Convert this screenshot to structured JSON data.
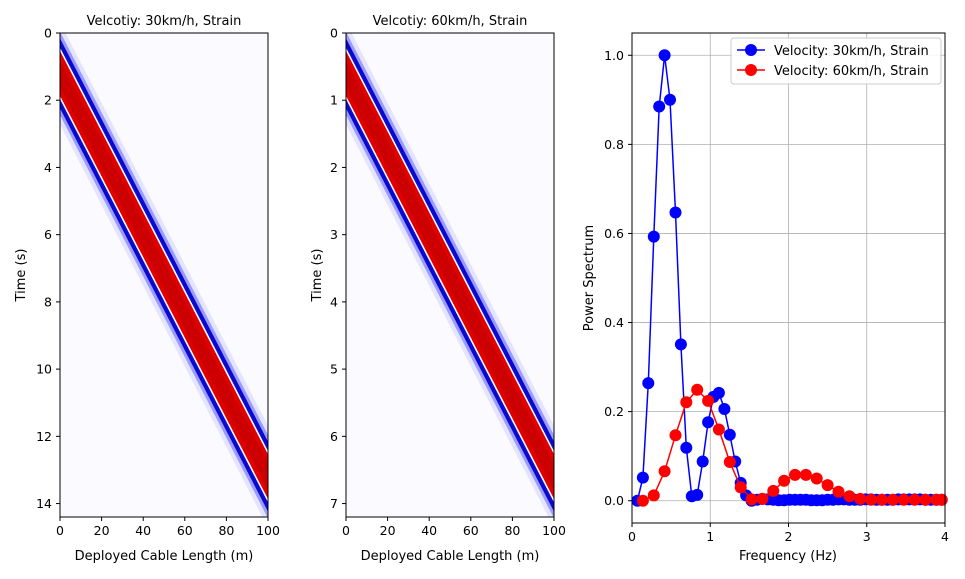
{
  "chart_data": [
    {
      "type": "heatmap",
      "title": "Velcotiy: 30km/h, Strain",
      "xlabel": "Deployed Cable Length (m)",
      "ylabel": "Time (s)",
      "xlim": [
        0,
        100
      ],
      "ylim": [
        14.4,
        0
      ],
      "xticks": [
        0,
        20,
        40,
        60,
        80,
        100
      ],
      "yticks": [
        0,
        2,
        4,
        6,
        8,
        10,
        12,
        14
      ],
      "speed_mps": 8.333,
      "band_center_t0": 1.2,
      "band_halfwidth_s": 0.8,
      "colormap": "seismic"
    },
    {
      "type": "heatmap",
      "title": "Velcotiy: 60km/h, Strain",
      "xlabel": "Deployed Cable Length (m)",
      "ylabel": "Time (s)",
      "xlim": [
        0,
        100
      ],
      "ylim": [
        7.2,
        0
      ],
      "xticks": [
        0,
        20,
        40,
        60,
        80,
        100
      ],
      "yticks": [
        0,
        1,
        2,
        3,
        4,
        5,
        6,
        7
      ],
      "speed_mps": 16.667,
      "band_center_t0": 0.6,
      "band_halfwidth_s": 0.4,
      "colormap": "seismic"
    },
    {
      "type": "line",
      "title": "",
      "xlabel": "Frequency (Hz)",
      "ylabel": "Power Spectrum",
      "xlim": [
        0,
        4
      ],
      "ylim": [
        -0.05,
        1.05
      ],
      "xticks": [
        0,
        1,
        2,
        3,
        4
      ],
      "yticks": [
        0.0,
        0.2,
        0.4,
        0.6,
        0.8,
        1.0
      ],
      "yticklabels": [
        "0.0",
        "0.2",
        "0.4",
        "0.6",
        "0.8",
        "1.0"
      ],
      "grid": true,
      "legend": "top-right",
      "series": [
        {
          "name": "Velocity: 30km/h, Strain",
          "color": "#0000ff",
          "x": [
            0.069,
            0.139,
            0.208,
            0.278,
            0.347,
            0.417,
            0.486,
            0.556,
            0.625,
            0.694,
            0.764,
            0.833,
            0.903,
            0.972,
            1.042,
            1.111,
            1.181,
            1.25,
            1.319,
            1.389,
            1.458,
            1.528,
            1.597,
            1.667,
            1.736,
            1.806,
            1.875,
            1.944,
            2.014,
            2.083,
            2.153,
            2.222,
            2.292,
            2.361,
            2.431,
            2.5,
            2.569,
            2.639,
            2.708,
            2.778,
            2.847,
            2.917,
            2.986,
            3.056,
            3.125,
            3.194,
            3.264,
            3.333,
            3.403,
            3.472,
            3.542,
            3.611,
            3.681,
            3.75,
            3.819,
            3.889,
            3.958
          ],
          "values": [
            0.0,
            0.052,
            0.264,
            0.593,
            0.885,
            1.0,
            0.9,
            0.647,
            0.351,
            0.119,
            0.01,
            0.013,
            0.088,
            0.176,
            0.233,
            0.242,
            0.206,
            0.148,
            0.088,
            0.04,
            0.012,
            0.0,
            0.002,
            0.004,
            0.003,
            0.002,
            0.001,
            0.001,
            0.002,
            0.002,
            0.002,
            0.002,
            0.001,
            0.001,
            0.001,
            0.002,
            0.002,
            0.003,
            0.003,
            0.002,
            0.002,
            0.002,
            0.003,
            0.003,
            0.002,
            0.002,
            0.002,
            0.002,
            0.003,
            0.003,
            0.003,
            0.003,
            0.003,
            0.002,
            0.002,
            0.002,
            0.002
          ]
        },
        {
          "name": "Velocity: 60km/h, Strain",
          "color": "#ff0000",
          "x": [
            0.139,
            0.278,
            0.417,
            0.556,
            0.694,
            0.833,
            0.972,
            1.111,
            1.25,
            1.389,
            1.528,
            1.667,
            1.806,
            1.944,
            2.083,
            2.222,
            2.361,
            2.5,
            2.639,
            2.778,
            2.917,
            3.056,
            3.194,
            3.333,
            3.472,
            3.611,
            3.75,
            3.889,
            3.958
          ],
          "values": [
            0.0,
            0.012,
            0.066,
            0.147,
            0.221,
            0.249,
            0.224,
            0.16,
            0.087,
            0.03,
            0.003,
            0.004,
            0.022,
            0.045,
            0.058,
            0.058,
            0.05,
            0.035,
            0.02,
            0.01,
            0.004,
            0.002,
            0.002,
            0.002,
            0.002,
            0.002,
            0.002,
            0.002,
            0.002
          ]
        }
      ]
    }
  ]
}
